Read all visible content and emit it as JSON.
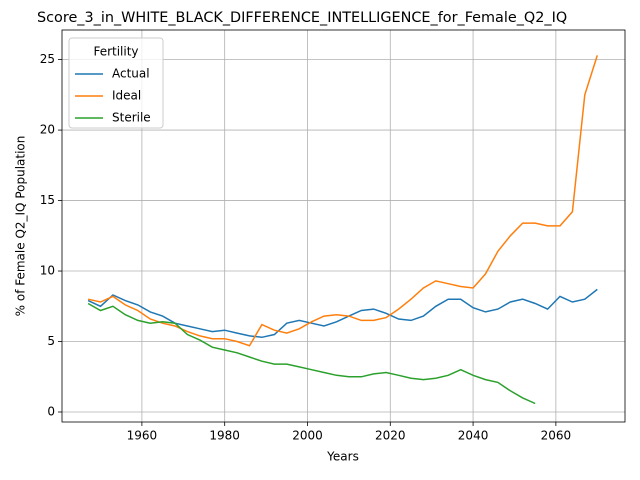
{
  "chart_data": {
    "type": "line",
    "title": "Score_3_in_WHITE_BLACK_DIFFERENCE_INTELLIGENCE_for_Female_Q2_IQ",
    "xlabel": "Years",
    "ylabel": "% of Female Q2_IQ Population",
    "legend_title": "Fertility",
    "legend": "upper left",
    "grid": true,
    "x": [
      1947,
      1950,
      1953,
      1956,
      1959,
      1962,
      1965,
      1968,
      1971,
      1974,
      1977,
      1980,
      1983,
      1986,
      1989,
      1992,
      1995,
      1998,
      2001,
      2004,
      2007,
      2010,
      2013,
      2016,
      2019,
      2022,
      2025,
      2028,
      2031,
      2034,
      2037,
      2040,
      2043,
      2046,
      2049,
      2052,
      2055,
      2058,
      2061,
      2064,
      2067,
      2070
    ],
    "series": [
      {
        "name": "Actual",
        "color": "#1f77b4",
        "values": [
          7.9,
          7.5,
          8.3,
          7.9,
          7.6,
          7.1,
          6.8,
          6.3,
          6.1,
          5.9,
          5.7,
          5.8,
          5.6,
          5.4,
          5.3,
          5.5,
          6.3,
          6.5,
          6.3,
          6.1,
          6.4,
          6.8,
          7.2,
          7.3,
          7.0,
          6.6,
          6.5,
          6.8,
          7.5,
          8.0,
          8.0,
          7.4,
          7.1,
          7.3,
          7.8,
          8.0,
          7.7,
          7.3,
          8.2,
          7.8,
          8.0,
          8.7
        ]
      },
      {
        "name": "Ideal",
        "color": "#ff7f0e",
        "values": [
          8.0,
          7.8,
          8.2,
          7.6,
          7.2,
          6.6,
          6.3,
          6.1,
          5.7,
          5.4,
          5.2,
          5.2,
          5.0,
          4.7,
          6.2,
          5.8,
          5.6,
          5.9,
          6.4,
          6.8,
          6.9,
          6.8,
          6.5,
          6.5,
          6.7,
          7.3,
          8.0,
          8.8,
          9.3,
          9.1,
          8.9,
          8.8,
          9.8,
          11.4,
          12.5,
          13.4,
          13.4,
          13.2,
          13.2,
          14.2,
          22.5,
          25.3
        ]
      },
      {
        "name": "Sterile",
        "color": "#2ca02c",
        "values": [
          7.7,
          7.2,
          7.5,
          6.9,
          6.5,
          6.3,
          6.4,
          6.3,
          5.5,
          5.1,
          4.6,
          4.4,
          4.2,
          3.9,
          3.6,
          3.4,
          3.4,
          3.2,
          3.0,
          2.8,
          2.6,
          2.5,
          2.5,
          2.7,
          2.8,
          2.6,
          2.4,
          2.3,
          2.4,
          2.6,
          3.0,
          2.6,
          2.3,
          2.1,
          1.5,
          1.0,
          0.6,
          null,
          null,
          null,
          null,
          null
        ]
      }
    ],
    "xlim": [
      1940.7,
      2076.7
    ],
    "ylim": [
      -0.71,
      27.1
    ],
    "xticks": [
      1960,
      1980,
      2000,
      2020,
      2040,
      2060
    ],
    "yticks": [
      0,
      5,
      10,
      15,
      20,
      25
    ]
  }
}
